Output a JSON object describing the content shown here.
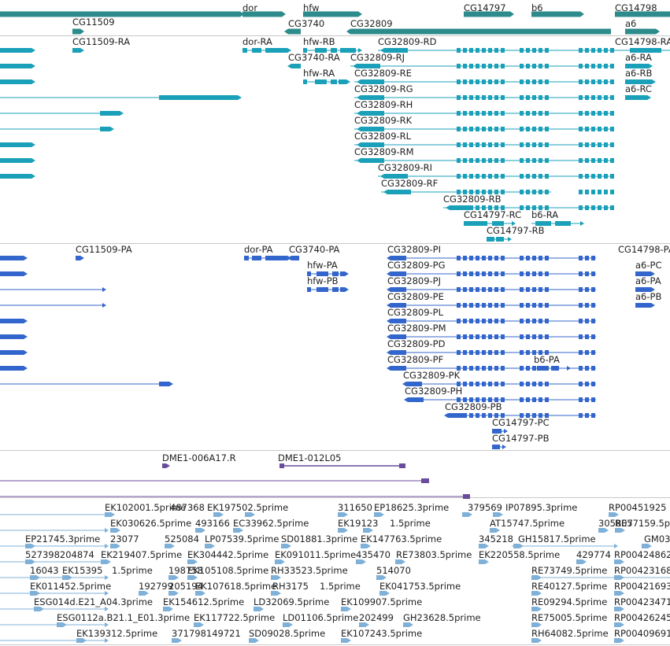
{
  "colors": {
    "gene": "#2e8b8b",
    "transcript": "#1aa0b8",
    "protein": "#3366cc",
    "clone": "#6a4c9c",
    "est": "#7fb0d8",
    "separator": "#c8c8c8",
    "text": "#222222"
  },
  "icons": {
    "forward": "arrow-right-icon",
    "reverse": "arrow-left-icon"
  },
  "tracks": {
    "genes": [
      {
        "label": "CG11509",
        "name": "gene-CG11509"
      },
      {
        "label": "dor",
        "name": "gene-dor"
      },
      {
        "label": "hfw",
        "name": "gene-hfw"
      },
      {
        "label": "CG14797",
        "name": "gene-CG14797"
      },
      {
        "label": "b6",
        "name": "gene-b6"
      },
      {
        "label": "CG14798",
        "name": "gene-CG14798"
      },
      {
        "label": "CG3740",
        "name": "gene-CG3740"
      },
      {
        "label": "CG32809",
        "name": "gene-CG32809"
      },
      {
        "label": "a6",
        "name": "gene-a6"
      }
    ],
    "transcripts": [
      {
        "label": "CG11509-RA"
      },
      {
        "label": "dor-RA"
      },
      {
        "label": "hfw-RB"
      },
      {
        "label": "CG32809-RD"
      },
      {
        "label": "CG14798-RA"
      },
      {
        "label": "CG3740-RA"
      },
      {
        "label": "CG32809-RJ"
      },
      {
        "label": "a6-RA"
      },
      {
        "label": "hfw-RA"
      },
      {
        "label": "CG32809-RE"
      },
      {
        "label": "a6-RB"
      },
      {
        "label": "CG32809-RG"
      },
      {
        "label": "a6-RC"
      },
      {
        "label": "CG32809-RH"
      },
      {
        "label": "CG32809-RK"
      },
      {
        "label": "CG32809-RL"
      },
      {
        "label": "CG32809-RM"
      },
      {
        "label": "CG32809-RI"
      },
      {
        "label": "CG32809-RF"
      },
      {
        "label": "CG32809-RB"
      },
      {
        "label": "CG14797-RC"
      },
      {
        "label": "b6-RA"
      },
      {
        "label": "CG14797-RB"
      }
    ],
    "proteins": [
      {
        "label": "CG11509-PA"
      },
      {
        "label": "dor-PA"
      },
      {
        "label": "CG3740-PA"
      },
      {
        "label": "CG32809-PI"
      },
      {
        "label": "CG14798-PA"
      },
      {
        "label": "hfw-PA"
      },
      {
        "label": "CG32809-PG"
      },
      {
        "label": "a6-PC"
      },
      {
        "label": "hfw-PB"
      },
      {
        "label": "CG32809-PJ"
      },
      {
        "label": "a6-PA"
      },
      {
        "label": "CG32809-PE"
      },
      {
        "label": "a6-PB"
      },
      {
        "label": "CG32809-PL"
      },
      {
        "label": "CG32809-PM"
      },
      {
        "label": "CG32809-PD"
      },
      {
        "label": "CG32809-PF"
      },
      {
        "label": "b6-PA"
      },
      {
        "label": "CG32809-PK"
      },
      {
        "label": "CG32809-PH"
      },
      {
        "label": "CG32809-PB"
      },
      {
        "label": "CG14797-PC"
      },
      {
        "label": "CG14797-PB"
      }
    ],
    "clones": [
      {
        "label": "DME1-006A17.R"
      },
      {
        "label": "DME1-012L05"
      }
    ],
    "ests": [
      {
        "label": "EK102001.5prime"
      },
      {
        "label": "487368"
      },
      {
        "label": "EK197502.5prime"
      },
      {
        "label": "311650"
      },
      {
        "label": "EP18625.3prime"
      },
      {
        "label": "379569"
      },
      {
        "label": "IP07895.3prime"
      },
      {
        "label": "RP00451925"
      },
      {
        "label": "EK030626.5prime"
      },
      {
        "label": "493166"
      },
      {
        "label": "EC33962.5prime"
      },
      {
        "label": "EK19123"
      },
      {
        "label": "1.5prime"
      },
      {
        "label": "AT15747.5prime"
      },
      {
        "label": "305807"
      },
      {
        "label": "RE57159.5p"
      },
      {
        "label": "EP21745.3prime"
      },
      {
        "label": "23077"
      },
      {
        "label": "525084"
      },
      {
        "label": "LP07539.5prime"
      },
      {
        "label": "SD01881.3prime"
      },
      {
        "label": "EK147763.5prime"
      },
      {
        "label": "345218"
      },
      {
        "label": "GH15817.5prime"
      },
      {
        "label": "GM03"
      },
      {
        "label": "527398204874"
      },
      {
        "label": "EK219407.5prime"
      },
      {
        "label": "EK304442.5prime"
      },
      {
        "label": "EK091011.5prime"
      },
      {
        "label": "435470"
      },
      {
        "label": "RE73803.5prime"
      },
      {
        "label": "EK220558.5prime"
      },
      {
        "label": "429774"
      },
      {
        "label": "RP00424862"
      },
      {
        "label": "16043"
      },
      {
        "label": "EK15395"
      },
      {
        "label": "1.5prime"
      },
      {
        "label": "198758"
      },
      {
        "label": "EK105108.5prime"
      },
      {
        "label": "RH33523.5prime"
      },
      {
        "label": "514070"
      },
      {
        "label": "RE73749.5prime"
      },
      {
        "label": "RP00423168"
      },
      {
        "label": "EK011452.5prime"
      },
      {
        "label": "192799"
      },
      {
        "label": "205194"
      },
      {
        "label": "EK107618.5prime"
      },
      {
        "label": "RH3175"
      },
      {
        "label": "1.5prime"
      },
      {
        "label": "EK041753.5prime"
      },
      {
        "label": "RE40127.5prime"
      },
      {
        "label": "RP00421693"
      },
      {
        "label": "ESG014d.E21_A04.3prime"
      },
      {
        "label": "EK154612.5prime"
      },
      {
        "label": "LD32069.5prime"
      },
      {
        "label": "EK109907.5prime"
      },
      {
        "label": "RE09294.5prime"
      },
      {
        "label": "RP00423471"
      },
      {
        "label": "ESG0112a.B21.1_E01.3prime"
      },
      {
        "label": "EK117722.5prime"
      },
      {
        "label": "LD01106.5prime"
      },
      {
        "label": "202499"
      },
      {
        "label": "GH23628.5prime"
      },
      {
        "label": "RE75005.5prime"
      },
      {
        "label": "RP00426245"
      },
      {
        "label": "EK139312.5prime"
      },
      {
        "label": "371798149721"
      },
      {
        "label": "SD09028.5prime"
      },
      {
        "label": "EK107243.5prime"
      },
      {
        "label": "RH64082.5prime"
      },
      {
        "label": "RP00409691"
      }
    ]
  }
}
